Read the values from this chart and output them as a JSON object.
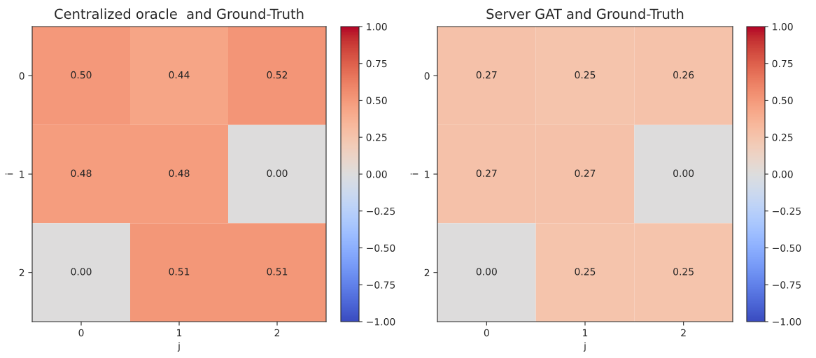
{
  "chart_data": [
    {
      "type": "heatmap",
      "title": "Centralized oracle  and Ground-Truth",
      "xlabel": "j",
      "ylabel": "i",
      "categories": [
        "0",
        "1",
        "2"
      ],
      "y_categories": [
        "0",
        "1",
        "2"
      ],
      "cells": [
        [
          0.5,
          0.44,
          0.52
        ],
        [
          0.48,
          0.48,
          0.0
        ],
        [
          0.0,
          0.51,
          0.51
        ]
      ],
      "cell_labels": [
        [
          "0.50",
          "0.44",
          "0.52"
        ],
        [
          "0.48",
          "0.48",
          "0.00"
        ],
        [
          "0.00",
          "0.51",
          "0.51"
        ]
      ],
      "clim": [
        -1,
        1
      ],
      "cticks": [
        {
          "value": -1,
          "label": "−1.00"
        },
        {
          "value": -0.75,
          "label": "−0.75"
        },
        {
          "value": -0.5,
          "label": "−0.50"
        },
        {
          "value": -0.25,
          "label": "−0.25"
        },
        {
          "value": 0,
          "label": "0.00"
        },
        {
          "value": 0.25,
          "label": "0.25"
        },
        {
          "value": 0.5,
          "label": "0.50"
        },
        {
          "value": 0.75,
          "label": "0.75"
        },
        {
          "value": 1,
          "label": "1.00"
        }
      ]
    },
    {
      "type": "heatmap",
      "title": "Server GAT and Ground-Truth",
      "xlabel": "j",
      "ylabel": "i",
      "categories": [
        "0",
        "1",
        "2"
      ],
      "y_categories": [
        "0",
        "1",
        "2"
      ],
      "cells": [
        [
          0.27,
          0.25,
          0.26
        ],
        [
          0.27,
          0.27,
          0.0
        ],
        [
          0.0,
          0.25,
          0.25
        ]
      ],
      "cell_labels": [
        [
          "0.27",
          "0.25",
          "0.26"
        ],
        [
          "0.27",
          "0.27",
          "0.00"
        ],
        [
          "0.00",
          "0.25",
          "0.25"
        ]
      ],
      "clim": [
        -1,
        1
      ],
      "cticks": [
        {
          "value": -1,
          "label": "−1.00"
        },
        {
          "value": -0.75,
          "label": "−0.75"
        },
        {
          "value": -0.5,
          "label": "−0.50"
        },
        {
          "value": -0.25,
          "label": "−0.25"
        },
        {
          "value": 0,
          "label": "0.00"
        },
        {
          "value": 0.25,
          "label": "0.25"
        },
        {
          "value": 0.5,
          "label": "0.50"
        },
        {
          "value": 0.75,
          "label": "0.75"
        },
        {
          "value": 1,
          "label": "1.00"
        }
      ]
    }
  ]
}
